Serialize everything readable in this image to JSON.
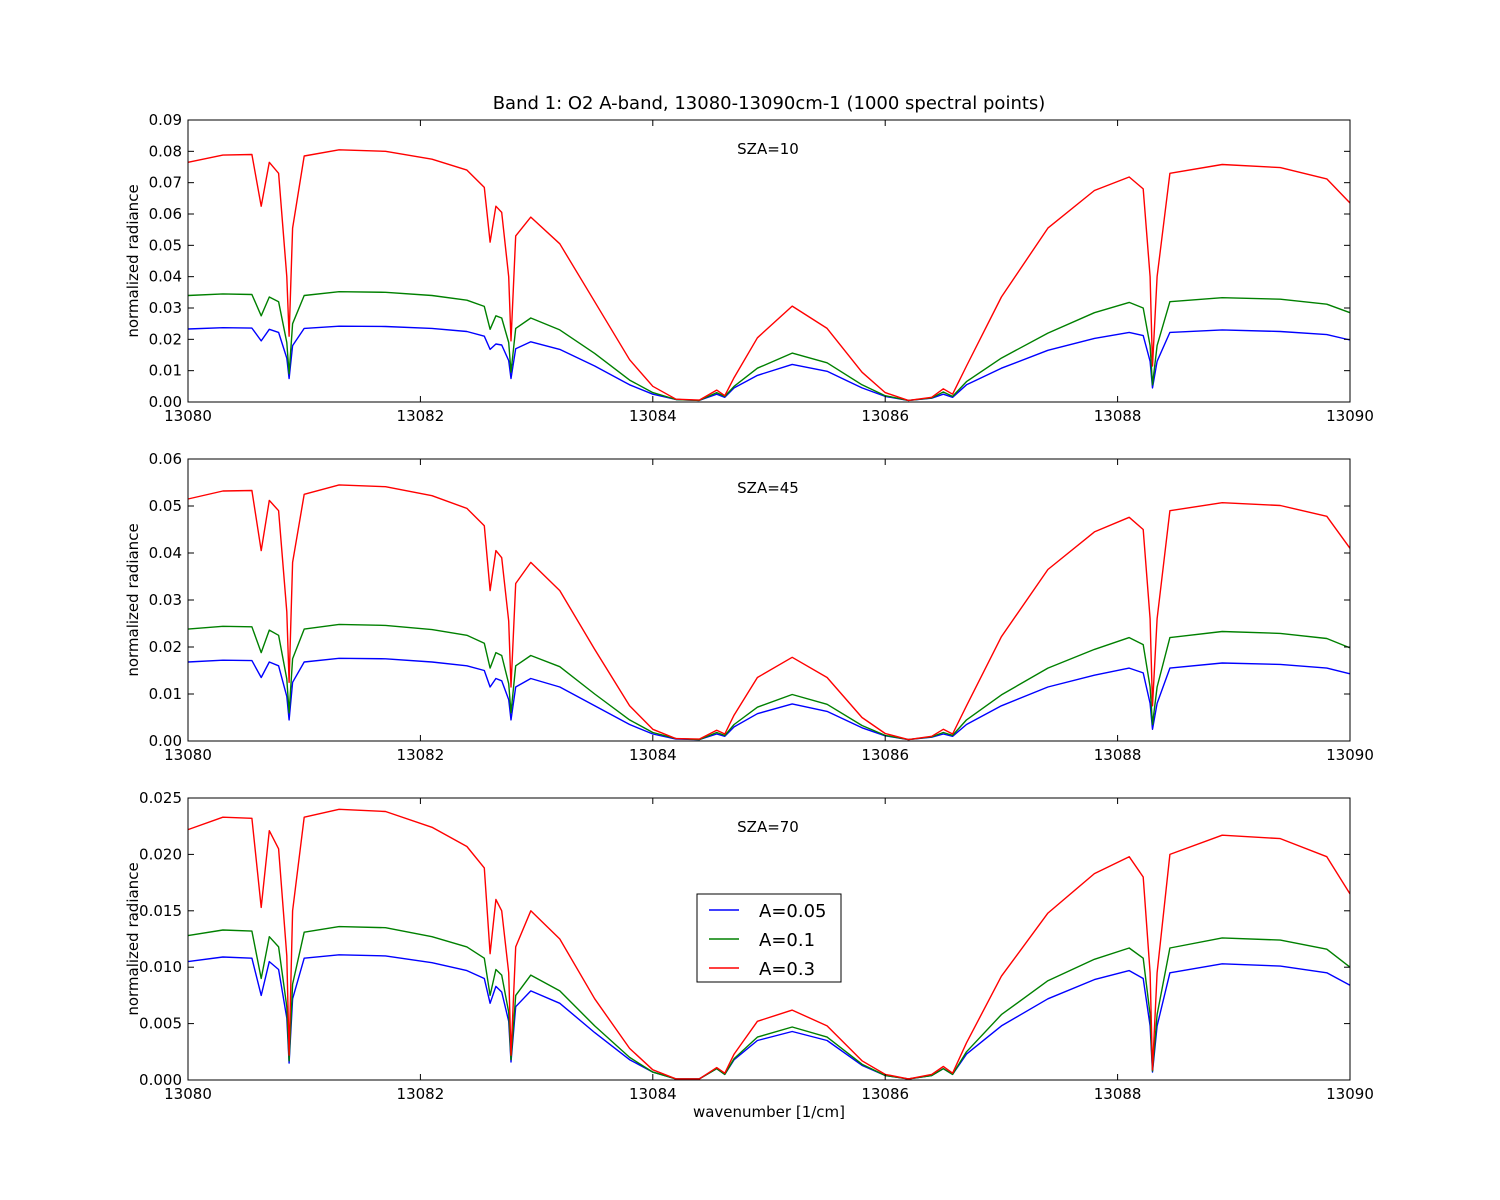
{
  "chart_data": {
    "type": "line",
    "title": "Band 1: O2 A-band, 13080-13090cm-1 (1000 spectral points)",
    "xlabel": "wavenumber [1/cm]",
    "legend": {
      "placement": "center",
      "entries": [
        {
          "name": "A=0.05",
          "color": "#0000ff"
        },
        {
          "name": "A=0.1",
          "color": "#008000"
        },
        {
          "name": "A=0.3",
          "color": "#ff0000"
        }
      ]
    },
    "x": [
      13080.0,
      13080.3,
      13080.55,
      13080.63,
      13080.7,
      13080.78,
      13080.85,
      13080.87,
      13080.9,
      13081.0,
      13081.3,
      13081.7,
      13082.1,
      13082.4,
      13082.55,
      13082.6,
      13082.65,
      13082.7,
      13082.76,
      13082.78,
      13082.82,
      13082.95,
      13083.2,
      13083.5,
      13083.8,
      13084.0,
      13084.2,
      13084.4,
      13084.55,
      13084.62,
      13084.7,
      13084.9,
      13085.2,
      13085.5,
      13085.8,
      13086.0,
      13086.2,
      13086.4,
      13086.5,
      13086.58,
      13086.7,
      13087.0,
      13087.4,
      13087.8,
      13088.1,
      13088.22,
      13088.28,
      13088.3,
      13088.34,
      13088.45,
      13088.9,
      13089.4,
      13089.8,
      13090.0
    ],
    "panels": [
      {
        "annotation": "SZA=10",
        "ylabel": "normalized radiance",
        "ylim": [
          0,
          0.09
        ],
        "yticks": [
          "0.00",
          "0.01",
          "0.02",
          "0.03",
          "0.04",
          "0.05",
          "0.06",
          "0.07",
          "0.08",
          "0.09"
        ],
        "series": [
          {
            "name": "A=0.05",
            "values": [
              0.0233,
              0.0237,
              0.0236,
              0.0195,
              0.0232,
              0.0222,
              0.014,
              0.0075,
              0.018,
              0.0235,
              0.0242,
              0.0241,
              0.0235,
              0.0225,
              0.021,
              0.0168,
              0.0185,
              0.0182,
              0.0132,
              0.0075,
              0.017,
              0.0192,
              0.0168,
              0.0115,
              0.0055,
              0.0025,
              0.0008,
              0.0005,
              0.0025,
              0.0015,
              0.0045,
              0.0085,
              0.012,
              0.0098,
              0.0045,
              0.0018,
              0.0005,
              0.0012,
              0.0025,
              0.0015,
              0.0055,
              0.0108,
              0.0165,
              0.0203,
              0.0222,
              0.0212,
              0.013,
              0.0045,
              0.013,
              0.0222,
              0.023,
              0.0225,
              0.0215,
              0.0198
            ]
          },
          {
            "name": "A=0.1",
            "values": [
              0.034,
              0.0345,
              0.0343,
              0.0275,
              0.0335,
              0.032,
              0.019,
              0.009,
              0.025,
              0.034,
              0.0352,
              0.035,
              0.034,
              0.0325,
              0.0305,
              0.0232,
              0.0275,
              0.0268,
              0.019,
              0.0095,
              0.0235,
              0.0268,
              0.023,
              0.0155,
              0.007,
              0.003,
              0.0008,
              0.0005,
              0.003,
              0.0018,
              0.005,
              0.0108,
              0.0156,
              0.0125,
              0.0055,
              0.002,
              0.0005,
              0.0013,
              0.0032,
              0.0018,
              0.0065,
              0.014,
              0.022,
              0.0285,
              0.0318,
              0.03,
              0.018,
              0.0055,
              0.018,
              0.032,
              0.0333,
              0.0328,
              0.0312,
              0.0285
            ]
          },
          {
            "name": "A=0.3",
            "values": [
              0.0765,
              0.0788,
              0.079,
              0.0625,
              0.0765,
              0.073,
              0.04,
              0.021,
              0.0555,
              0.0785,
              0.0805,
              0.08,
              0.0775,
              0.074,
              0.0685,
              0.051,
              0.0625,
              0.0605,
              0.04,
              0.0195,
              0.053,
              0.059,
              0.0505,
              0.032,
              0.0135,
              0.005,
              0.0009,
              0.0006,
              0.0038,
              0.002,
              0.0078,
              0.0205,
              0.0306,
              0.0235,
              0.0095,
              0.003,
              0.0005,
              0.0015,
              0.0042,
              0.0025,
              0.0115,
              0.0335,
              0.0555,
              0.0675,
              0.0718,
              0.068,
              0.04,
              0.0115,
              0.04,
              0.073,
              0.0758,
              0.0748,
              0.0712,
              0.0635
            ]
          }
        ]
      },
      {
        "annotation": "SZA=45",
        "ylabel": "normalized radiance",
        "ylim": [
          0,
          0.06
        ],
        "yticks": [
          "0.00",
          "0.01",
          "0.02",
          "0.03",
          "0.04",
          "0.05",
          "0.06"
        ],
        "series": [
          {
            "name": "A=0.05",
            "values": [
              0.0168,
              0.0172,
              0.0171,
              0.0135,
              0.0168,
              0.016,
              0.0095,
              0.0045,
              0.0125,
              0.0168,
              0.0176,
              0.0175,
              0.0168,
              0.016,
              0.015,
              0.0115,
              0.0133,
              0.0128,
              0.0088,
              0.0045,
              0.0115,
              0.0133,
              0.0115,
              0.0075,
              0.0035,
              0.0015,
              0.0004,
              0.0003,
              0.0015,
              0.001,
              0.003,
              0.0058,
              0.0079,
              0.0063,
              0.0028,
              0.0011,
              0.0003,
              0.0008,
              0.0015,
              0.001,
              0.0035,
              0.0075,
              0.0115,
              0.014,
              0.0155,
              0.0145,
              0.008,
              0.0025,
              0.008,
              0.0155,
              0.0166,
              0.0163,
              0.0155,
              0.0143
            ]
          },
          {
            "name": "A=0.1",
            "values": [
              0.0238,
              0.0244,
              0.0243,
              0.0188,
              0.0236,
              0.0225,
              0.0132,
              0.006,
              0.0175,
              0.0238,
              0.0248,
              0.0246,
              0.0237,
              0.0225,
              0.0208,
              0.0155,
              0.0188,
              0.0182,
              0.0122,
              0.006,
              0.016,
              0.0182,
              0.0158,
              0.01,
              0.0045,
              0.0018,
              0.0005,
              0.0003,
              0.0018,
              0.0012,
              0.0035,
              0.0072,
              0.0099,
              0.0078,
              0.0033,
              0.0012,
              0.0003,
              0.0009,
              0.0018,
              0.0012,
              0.0045,
              0.0098,
              0.0155,
              0.0195,
              0.022,
              0.0205,
              0.0115,
              0.0035,
              0.0115,
              0.022,
              0.0233,
              0.0229,
              0.0218,
              0.0198
            ]
          },
          {
            "name": "A=0.3",
            "values": [
              0.0515,
              0.0532,
              0.0533,
              0.0405,
              0.0512,
              0.049,
              0.0275,
              0.0125,
              0.038,
              0.0525,
              0.0545,
              0.0541,
              0.0522,
              0.0495,
              0.0458,
              0.032,
              0.0405,
              0.039,
              0.0255,
              0.0115,
              0.0335,
              0.038,
              0.032,
              0.0195,
              0.0075,
              0.0025,
              0.0005,
              0.0004,
              0.0023,
              0.0015,
              0.0055,
              0.0135,
              0.0178,
              0.0135,
              0.005,
              0.0016,
              0.0003,
              0.001,
              0.0025,
              0.0015,
              0.0075,
              0.0222,
              0.0365,
              0.0445,
              0.0476,
              0.045,
              0.026,
              0.0075,
              0.026,
              0.049,
              0.0507,
              0.0501,
              0.0478,
              0.041
            ]
          }
        ]
      },
      {
        "annotation": "SZA=70",
        "ylabel": "normalized radiance",
        "ylim": [
          0,
          0.025
        ],
        "yticks": [
          "0.000",
          "0.005",
          "0.010",
          "0.015",
          "0.020",
          "0.025"
        ],
        "series": [
          {
            "name": "A=0.05",
            "values": [
              0.0105,
              0.0109,
              0.0108,
              0.0075,
              0.0105,
              0.0098,
              0.0055,
              0.0015,
              0.0072,
              0.0108,
              0.0111,
              0.011,
              0.0104,
              0.0097,
              0.009,
              0.0068,
              0.0083,
              0.0078,
              0.0052,
              0.0016,
              0.0065,
              0.0079,
              0.0068,
              0.0042,
              0.0018,
              0.0007,
              0.0001,
              0.0001,
              0.001,
              0.0005,
              0.0018,
              0.0035,
              0.0043,
              0.0035,
              0.0013,
              0.0004,
              0.0001,
              0.0004,
              0.001,
              0.0005,
              0.0023,
              0.0048,
              0.0072,
              0.0089,
              0.0097,
              0.009,
              0.0048,
              0.0007,
              0.0048,
              0.0095,
              0.0103,
              0.0101,
              0.0095,
              0.0084
            ]
          },
          {
            "name": "A=0.1",
            "values": [
              0.0128,
              0.0133,
              0.0132,
              0.009,
              0.0127,
              0.0118,
              0.0065,
              0.0017,
              0.0085,
              0.0131,
              0.0136,
              0.0135,
              0.0127,
              0.0118,
              0.0108,
              0.0075,
              0.0098,
              0.0093,
              0.006,
              0.0018,
              0.0075,
              0.0093,
              0.0079,
              0.0048,
              0.002,
              0.0007,
              0.0001,
              0.0001,
              0.001,
              0.0005,
              0.0019,
              0.0038,
              0.0047,
              0.0038,
              0.0014,
              0.0004,
              0.0001,
              0.0004,
              0.001,
              0.0005,
              0.0025,
              0.0058,
              0.0088,
              0.0107,
              0.0117,
              0.0108,
              0.0058,
              0.0008,
              0.0058,
              0.0117,
              0.0126,
              0.0124,
              0.0116,
              0.01
            ]
          },
          {
            "name": "A=0.3",
            "values": [
              0.0222,
              0.0233,
              0.0232,
              0.0153,
              0.0221,
              0.0205,
              0.011,
              0.0022,
              0.015,
              0.0233,
              0.024,
              0.0238,
              0.0224,
              0.0207,
              0.0188,
              0.0112,
              0.016,
              0.015,
              0.0095,
              0.0022,
              0.0118,
              0.015,
              0.0125,
              0.0072,
              0.0028,
              0.0009,
              0.0001,
              0.0001,
              0.0011,
              0.0006,
              0.0023,
              0.0052,
              0.0062,
              0.0048,
              0.0017,
              0.0005,
              0.0001,
              0.0005,
              0.0012,
              0.0006,
              0.0033,
              0.0092,
              0.0148,
              0.0183,
              0.0198,
              0.018,
              0.0095,
              0.0009,
              0.0095,
              0.02,
              0.0217,
              0.0214,
              0.0198,
              0.0165
            ]
          }
        ]
      }
    ],
    "xticks": [
      "13080",
      "13082",
      "13084",
      "13086",
      "13088",
      "13090"
    ],
    "xlim": [
      13080,
      13090
    ]
  }
}
